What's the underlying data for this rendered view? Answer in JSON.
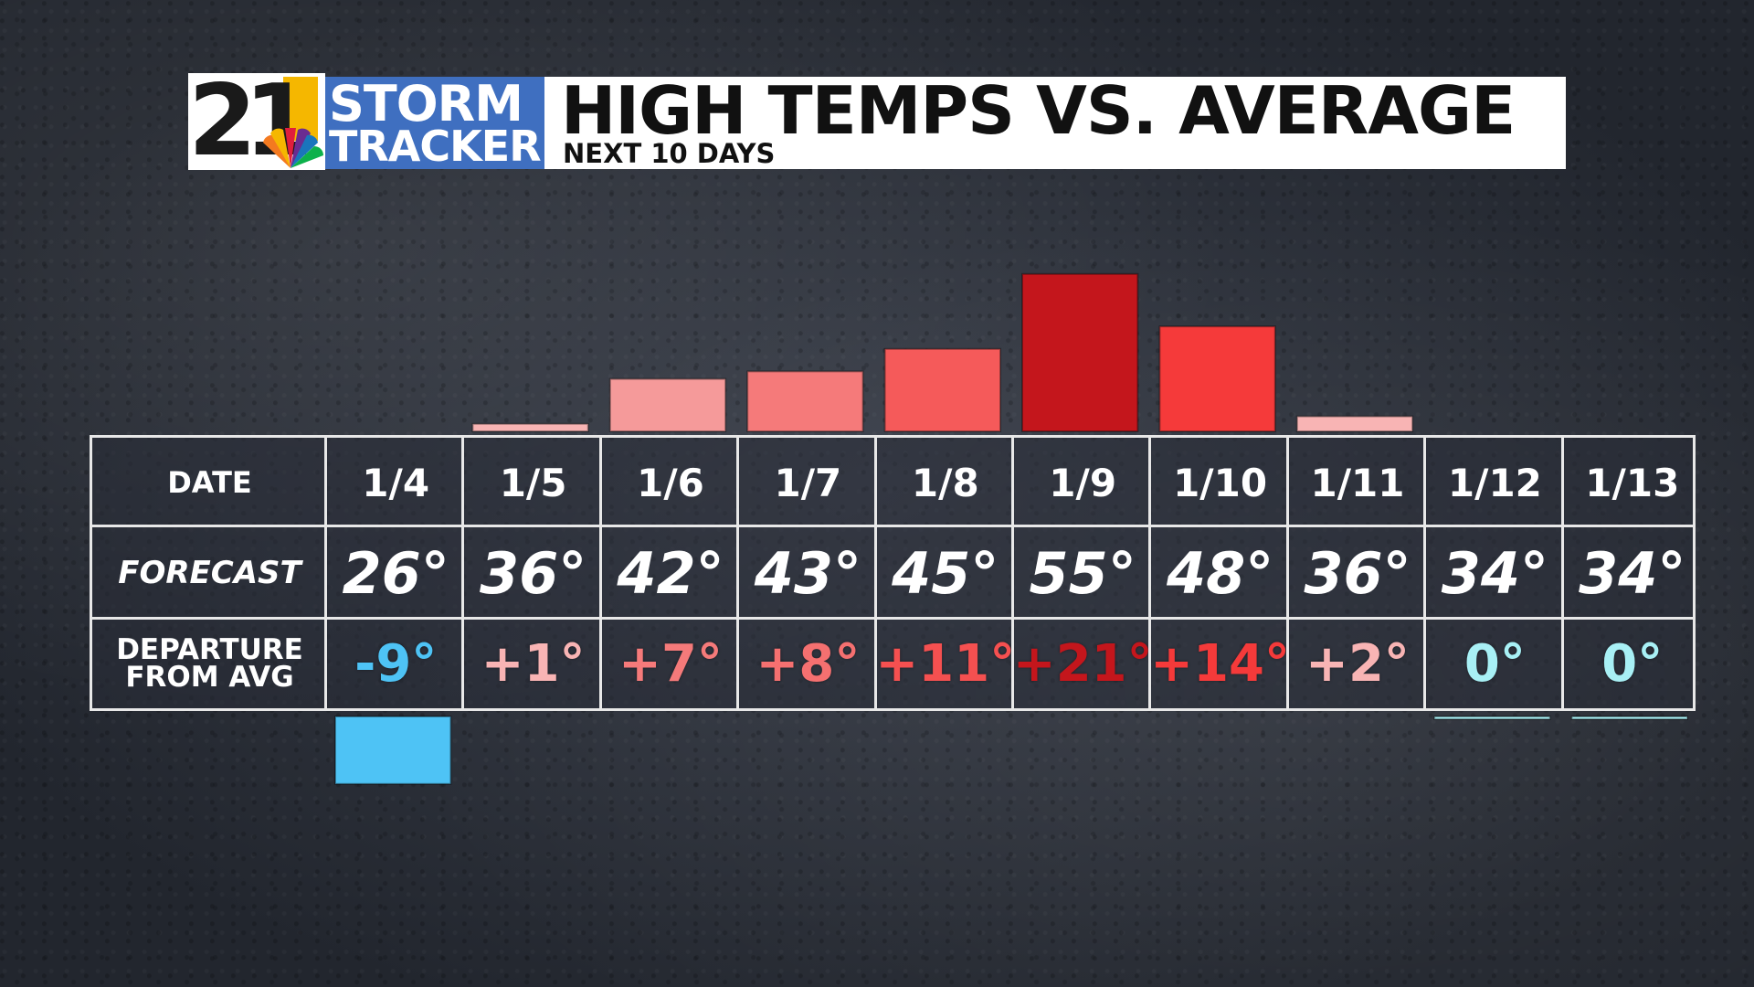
{
  "header": {
    "logo_number": "21",
    "logo_line1": "STORM",
    "logo_line2": "TRACKER",
    "title": "HIGH TEMPS VS. AVERAGE",
    "subtitle": "NEXT 10 DAYS"
  },
  "table": {
    "row_labels": {
      "date": "DATE",
      "forecast": "FORECAST",
      "departure_line1": "DEPARTURE",
      "departure_line2": "FROM AVG"
    }
  },
  "colors": {
    "cold": "#4ec3f5",
    "zero": "#a8f0f5",
    "warm_light": "#f8b4b4",
    "warm_mid": "#f57a7a",
    "warm_strong": "#f54545",
    "warm_max": "#c4161c"
  },
  "chart_data": {
    "type": "bar",
    "categories": [
      "1/4",
      "1/5",
      "1/6",
      "1/7",
      "1/8",
      "1/9",
      "1/10",
      "1/11",
      "1/12",
      "1/13"
    ],
    "forecast": [
      "26°",
      "36°",
      "42°",
      "43°",
      "45°",
      "55°",
      "48°",
      "36°",
      "34°",
      "34°"
    ],
    "departure_labels": [
      "-9°",
      "+1°",
      "+7°",
      "+8°",
      "+11°",
      "+21°",
      "+14°",
      "+2°",
      "0°",
      "0°"
    ],
    "values": [
      -9,
      1,
      7,
      8,
      11,
      21,
      14,
      2,
      0,
      0
    ],
    "bar_colors": [
      "#4ec3f5",
      "#f8b4b4",
      "#f59a9a",
      "#f57a7a",
      "#f55a5a",
      "#c4161c",
      "#f53a3a",
      "#f8b4b4",
      "#a8f0f5",
      "#a8f0f5"
    ],
    "text_colors": [
      "#4ec3f5",
      "#f8b4b4",
      "#f57a7a",
      "#f57070",
      "#f55050",
      "#c4161c",
      "#f53a3a",
      "#f8b4b4",
      "#a8f0f5",
      "#a8f0f5"
    ]
  }
}
